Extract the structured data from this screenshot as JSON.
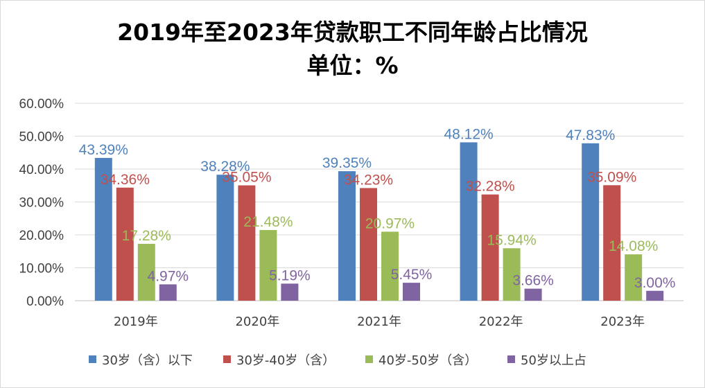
{
  "chart_data": {
    "type": "bar",
    "title": "2019年至2023年贷款职工不同年龄占比情况",
    "subtitle": "单位：%",
    "categories": [
      "2019年",
      "2020年",
      "2021年",
      "2022年",
      "2023年"
    ],
    "ylim": [
      0,
      60
    ],
    "yticks": [
      "0.00%",
      "10.00%",
      "20.00%",
      "30.00%",
      "40.00%",
      "50.00%",
      "60.00%"
    ],
    "grid": true,
    "legend_position": "bottom",
    "series": [
      {
        "name": "30岁（含）以下",
        "color": "#4f81bd",
        "values": [
          43.39,
          38.28,
          39.35,
          48.12,
          47.83
        ],
        "labels": [
          "43.39%",
          "38.28%",
          "39.35%",
          "48.12%",
          "47.83%"
        ]
      },
      {
        "name": "30岁-40岁（含）",
        "color": "#c0504d",
        "values": [
          34.36,
          35.05,
          34.23,
          32.28,
          35.09
        ],
        "labels": [
          "34.36%",
          "35.05%",
          "34.23%",
          "32.28%",
          "35.09%"
        ]
      },
      {
        "name": "40岁-50岁（含）",
        "color": "#9bbb59",
        "values": [
          17.28,
          21.48,
          20.97,
          15.94,
          14.08
        ],
        "labels": [
          "17.28%",
          "21.48%",
          "20.97%",
          "15.94%",
          "14.08%"
        ]
      },
      {
        "name": "50岁以上占",
        "color": "#8064a2",
        "values": [
          4.97,
          5.19,
          5.45,
          3.66,
          3.0
        ],
        "labels": [
          "4.97%",
          "5.19%",
          "5.45%",
          "3.66%",
          "3.00%"
        ]
      }
    ]
  }
}
